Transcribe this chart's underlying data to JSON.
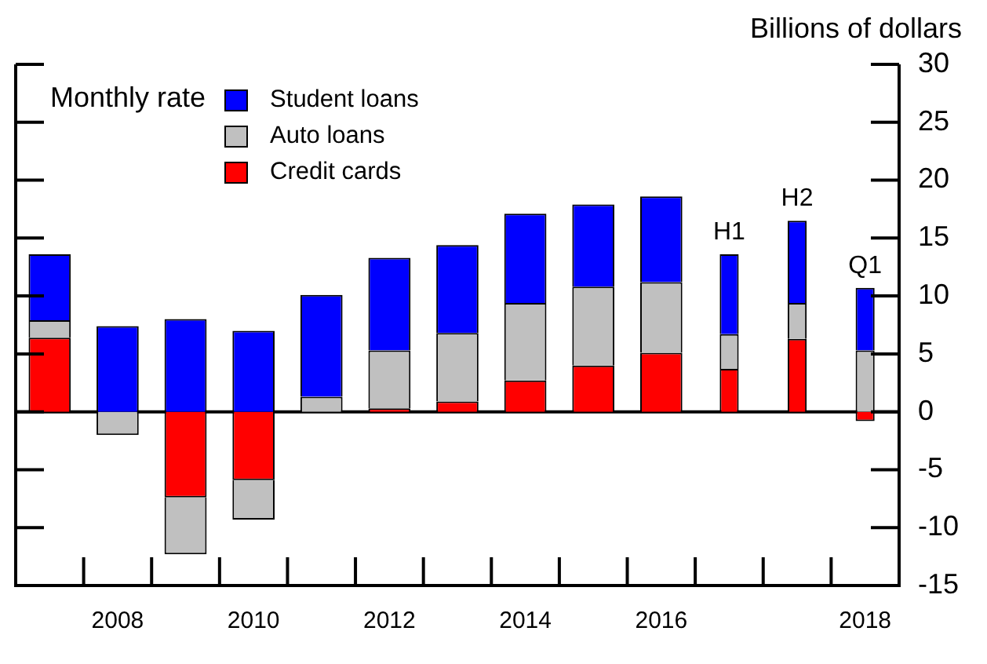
{
  "chart_data": {
    "type": "bar",
    "stacked": true,
    "ylabel": "Billions of dollars",
    "legend_title": "Monthly rate",
    "legend": "top left",
    "grid": false,
    "categories": [
      null,
      "2008",
      null,
      "2010",
      null,
      "2012",
      null,
      "2014",
      null,
      "2016",
      null,
      null,
      "2018"
    ],
    "series": [
      {
        "name": "Credit cards",
        "color": "#ff0000",
        "values": [
          6.4,
          0,
          -7.4,
          -5.9,
          null,
          0.3,
          0.9,
          2.7,
          4.0,
          5.1,
          3.7,
          6.3,
          -0.8
        ]
      },
      {
        "name": "Auto loans",
        "color": "#c0c0c0",
        "values": [
          1.5,
          -2.0,
          -4.9,
          -3.4,
          1.3,
          5.0,
          5.9,
          6.7,
          6.8,
          6.1,
          3.0,
          3.1,
          5.3
        ]
      },
      {
        "name": "Student loans",
        "color": "#0000ff",
        "values": [
          5.7,
          7.4,
          8.0,
          7.0,
          8.8,
          8.0,
          7.6,
          7.7,
          7.1,
          7.4,
          6.9,
          7.1,
          5.4
        ],
        "value_labels": [
          null,
          null,
          null,
          null,
          null,
          null,
          null,
          null,
          null,
          null,
          "H1",
          "H2",
          "Q1"
        ]
      }
    ],
    "ylim": [
      -15,
      30
    ],
    "yticks": [
      -15,
      -10,
      -5,
      0,
      5,
      10,
      15,
      20,
      25,
      30
    ],
    "ref_lines": [
      {
        "axis": "y",
        "value": 0,
        "color": "#000000"
      }
    ]
  }
}
